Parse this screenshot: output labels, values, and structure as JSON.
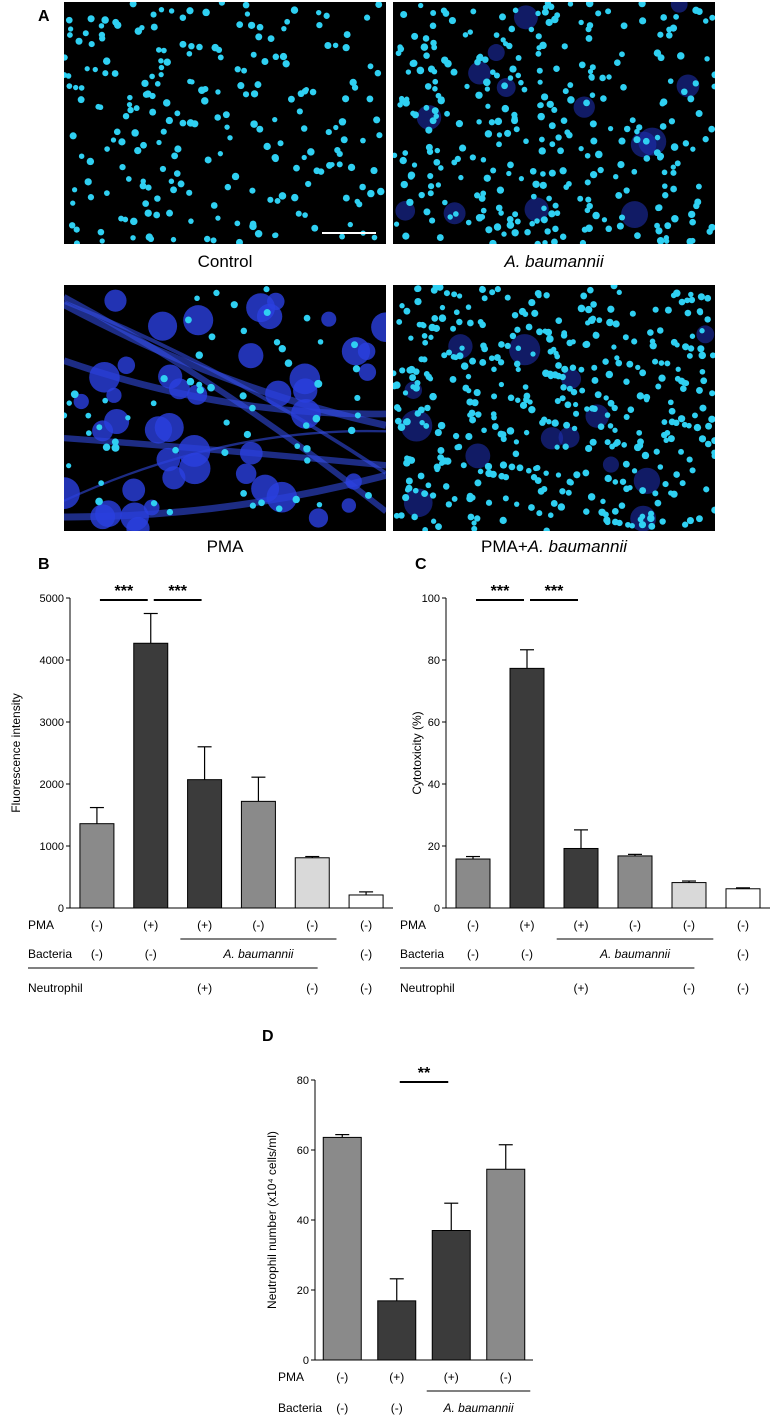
{
  "panel_letters": {
    "a": "A",
    "b": "B",
    "c": "C",
    "d": "D"
  },
  "micrographs": {
    "images": [
      {
        "id": "control",
        "caption": "Control",
        "caption_italic": "",
        "style": "sparse"
      },
      {
        "id": "ab",
        "caption": "",
        "caption_italic": "A. baumannii",
        "style": "dense"
      },
      {
        "id": "pma",
        "caption": "PMA",
        "caption_italic": "",
        "style": "net"
      },
      {
        "id": "pma-ab",
        "caption": "PMA+",
        "caption_italic": "A. baumannii",
        "style": "dense"
      }
    ],
    "colors": {
      "nucleus": "#2fd0f2",
      "cell": "#2a40e0",
      "background": "#000000"
    }
  },
  "condition_rows": {
    "pma_label": "PMA",
    "bacteria_label": "Bacteria",
    "neutrophil_label": "Neutrophil",
    "bacteria_group_label": "A. baumannii",
    "neutrophil_group_label": "(+)"
  },
  "chart_data": [
    {
      "id": "B",
      "type": "bar",
      "title": "",
      "xlabel": "",
      "ylabel": "Fluorescence intensity",
      "ylim": [
        0,
        5000
      ],
      "yticks": [
        0,
        1000,
        2000,
        3000,
        4000,
        5000
      ],
      "values": [
        1360,
        4270,
        2070,
        1720,
        810,
        210
      ],
      "errors": [
        260,
        480,
        530,
        390,
        20,
        50
      ],
      "bar_colors": [
        "#8a8a8a",
        "#3b3b3b",
        "#3b3b3b",
        "#8a8a8a",
        "#d9d9d9",
        "#ffffff"
      ],
      "conditions": {
        "pma": [
          "(-)",
          "(+)",
          "(+)",
          "(-)",
          "(-)",
          "(-)"
        ],
        "bacteria": [
          "(-)",
          "(-)",
          "",
          "",
          "",
          "(-)"
        ],
        "neutrophil": [
          "",
          "",
          "",
          "",
          "(-)",
          "(-)"
        ]
      },
      "significance": [
        {
          "from": 0,
          "to": 1,
          "label": "***"
        },
        {
          "from": 1,
          "to": 2,
          "label": "***"
        }
      ]
    },
    {
      "id": "C",
      "type": "bar",
      "title": "",
      "xlabel": "",
      "ylabel": "Cytotoxicity (%)",
      "ylim": [
        0,
        100
      ],
      "yticks": [
        0,
        20,
        40,
        60,
        80,
        100
      ],
      "values": [
        15.8,
        77.3,
        19.2,
        16.8,
        8.2,
        6.2
      ],
      "errors": [
        0.8,
        6.0,
        6.0,
        0.5,
        0.5,
        0.3
      ],
      "bar_colors": [
        "#8a8a8a",
        "#3b3b3b",
        "#3b3b3b",
        "#8a8a8a",
        "#d9d9d9",
        "#ffffff"
      ],
      "conditions": {
        "pma": [
          "(-)",
          "(+)",
          "(+)",
          "(-)",
          "(-)",
          "(-)"
        ],
        "bacteria": [
          "(-)",
          "(-)",
          "",
          "",
          "",
          "(-)"
        ],
        "neutrophil": [
          "",
          "",
          "",
          "",
          "(-)",
          "(-)"
        ]
      },
      "significance": [
        {
          "from": 0,
          "to": 1,
          "label": "***"
        },
        {
          "from": 1,
          "to": 2,
          "label": "***"
        }
      ]
    },
    {
      "id": "D",
      "type": "bar",
      "title": "",
      "xlabel": "",
      "ylabel": "Neutrophil number (x10⁴ cells/ml)",
      "ylim": [
        0,
        80
      ],
      "yticks": [
        0,
        20,
        40,
        60,
        80
      ],
      "values": [
        63.6,
        16.9,
        37.0,
        54.5
      ],
      "errors": [
        0.8,
        6.3,
        7.8,
        7.0
      ],
      "bar_colors": [
        "#8a8a8a",
        "#3b3b3b",
        "#3b3b3b",
        "#8a8a8a"
      ],
      "conditions": {
        "pma": [
          "(-)",
          "(+)",
          "(+)",
          "(-)"
        ],
        "bacteria": [
          "(-)",
          "(-)",
          "",
          ""
        ]
      },
      "significance": [
        {
          "from": 1,
          "to": 2,
          "label": "**"
        }
      ]
    }
  ]
}
